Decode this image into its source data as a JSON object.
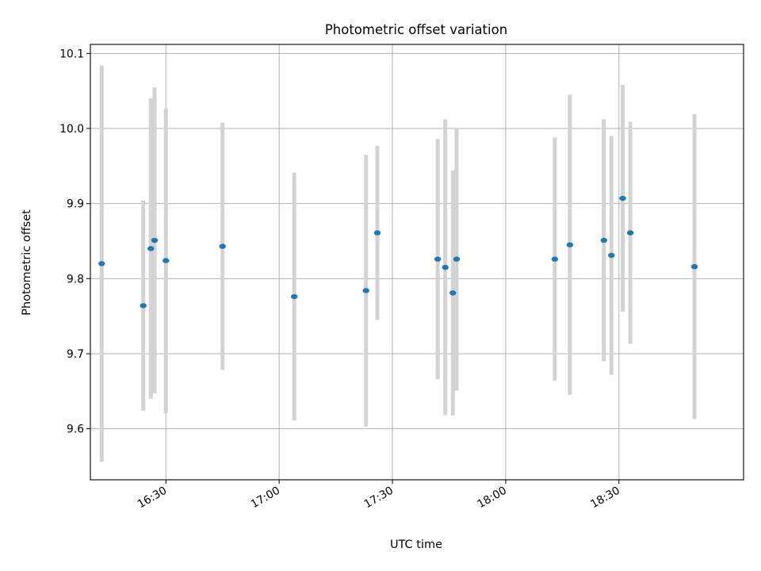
{
  "chart_data": {
    "type": "scatter",
    "title": "Photometric offset variation",
    "xlabel": "UTC time",
    "ylabel": "Photometric offset",
    "grid": true,
    "x_range": [
      "16:10",
      "19:03"
    ],
    "ylim": [
      9.532,
      10.112
    ],
    "y_ticks": [
      "9.6",
      "9.7",
      "9.8",
      "9.9",
      "10.0",
      "10.1"
    ],
    "x_ticks": [
      "16:30",
      "17:00",
      "17:30",
      "18:00",
      "18:30"
    ],
    "colors": {
      "point": "#1f77b4",
      "errorbar": "#d3d3d3",
      "grid": "#b0b0b0"
    },
    "series": [
      {
        "points": [
          {
            "x": "16:13",
            "y": 9.82,
            "err": 0.264
          },
          {
            "x": "16:24",
            "y": 9.764,
            "err": 0.14
          },
          {
            "x": "16:26",
            "y": 9.84,
            "err": 0.2
          },
          {
            "x": "16:27",
            "y": 9.851,
            "err": 0.204
          },
          {
            "x": "16:30",
            "y": 9.824,
            "err": 0.203
          },
          {
            "x": "16:45",
            "y": 9.843,
            "err": 0.165
          },
          {
            "x": "17:04",
            "y": 9.776,
            "err": 0.165
          },
          {
            "x": "17:23",
            "y": 9.784,
            "err": 0.181
          },
          {
            "x": "17:26",
            "y": 9.861,
            "err": 0.116
          },
          {
            "x": "17:42",
            "y": 9.826,
            "err": 0.16
          },
          {
            "x": "17:44",
            "y": 9.815,
            "err": 0.197
          },
          {
            "x": "17:46",
            "y": 9.781,
            "err": 0.163
          },
          {
            "x": "17:47",
            "y": 9.826,
            "err": 0.175
          },
          {
            "x": "18:13",
            "y": 9.826,
            "err": 0.162
          },
          {
            "x": "18:17",
            "y": 9.845,
            "err": 0.2
          },
          {
            "x": "18:26",
            "y": 9.851,
            "err": 0.161
          },
          {
            "x": "18:28",
            "y": 9.831,
            "err": 0.159
          },
          {
            "x": "18:31",
            "y": 9.907,
            "err": 0.151
          },
          {
            "x": "18:33",
            "y": 9.861,
            "err": 0.148
          },
          {
            "x": "18:50",
            "y": 9.816,
            "err": 0.203
          }
        ]
      }
    ]
  }
}
